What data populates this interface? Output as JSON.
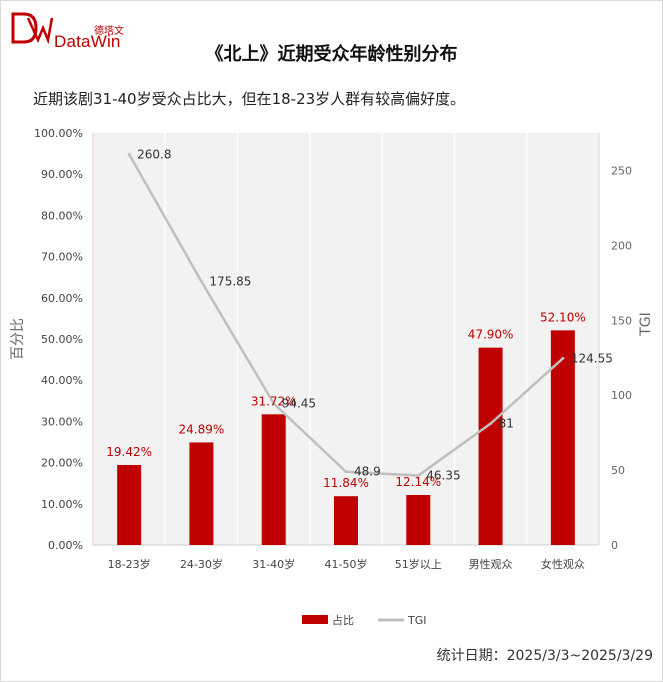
{
  "header": {
    "logo_cn": "德塔文",
    "logo_en": "DataWin",
    "title": "《北上》近期受众年龄性别分布",
    "subtitle": "近期该剧31-40岁受众占比大，但在18-23岁人群有较高偏好度。"
  },
  "footer": {
    "date_text": "统计日期：2025/3/3~2025/3/29"
  },
  "colors": {
    "brand": "#c00000",
    "bar": "#c00000",
    "line": "#bfbfbf",
    "plot_bg": "#f2f2f2",
    "grid": "#ffffff"
  },
  "chart_data": {
    "type": "bar",
    "categories": [
      "18-23岁",
      "24-30岁",
      "31-40岁",
      "41-50岁",
      "51岁以上",
      "男性观众",
      "女性观众"
    ],
    "series": [
      {
        "name": "占比",
        "type": "bar",
        "axis": "left",
        "values": [
          19.42,
          24.89,
          31.72,
          11.84,
          12.14,
          47.9,
          52.1
        ],
        "labels": [
          "19.42%",
          "24.89%",
          "31.72%",
          "11.84%",
          "12.14%",
          "47.90%",
          "52.10%"
        ]
      },
      {
        "name": "TGI",
        "type": "line",
        "axis": "right",
        "values": [
          260.8,
          175.85,
          94.45,
          48.9,
          46.35,
          81,
          124.55
        ],
        "labels": [
          "260.8",
          "175.85",
          "94.45",
          "48.9",
          "46.35",
          "81",
          "124.55"
        ]
      }
    ],
    "ylabel": "百分比",
    "ylabel_right": "TGI",
    "ylim": [
      0,
      100
    ],
    "ylim_right": [
      0,
      275
    ],
    "yticks": [
      "0.00%",
      "10.00%",
      "20.00%",
      "30.00%",
      "40.00%",
      "50.00%",
      "60.00%",
      "70.00%",
      "80.00%",
      "90.00%",
      "100.00%"
    ],
    "yticks_right": [
      "0",
      "50",
      "100",
      "150",
      "200",
      "250"
    ],
    "legend_position": "bottom",
    "grid": true
  }
}
